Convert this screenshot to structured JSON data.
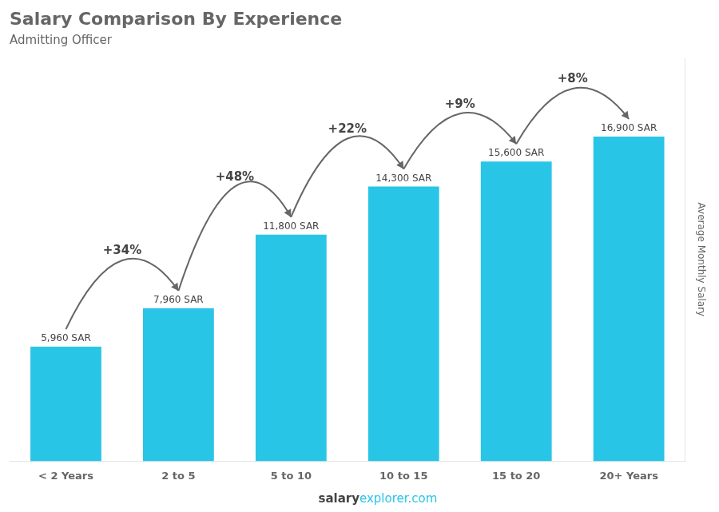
{
  "chart_data": {
    "type": "bar",
    "title": "Salary Comparison By Experience",
    "subtitle": "Admitting Officer",
    "ylabel": "Average Monthly Salary",
    "categories": [
      "< 2 Years",
      "2 to 5",
      "5 to 10",
      "10 to 15",
      "15 to 20",
      "20+ Years"
    ],
    "values": [
      5960,
      7960,
      11800,
      14300,
      15600,
      16900
    ],
    "value_labels": [
      "5,960 SAR",
      "7,960 SAR",
      "11,800 SAR",
      "14,300 SAR",
      "15,600 SAR",
      "16,900 SAR"
    ],
    "data_labels": true,
    "annotations": [
      "+34%",
      "+48%",
      "+22%",
      "+9%",
      "+8%"
    ],
    "footer": [
      "salary",
      "explorer.com"
    ],
    "color": "#29C5E6",
    "ylim": [
      0,
      21000
    ],
    "grid": false,
    "tick_labels": "x"
  }
}
